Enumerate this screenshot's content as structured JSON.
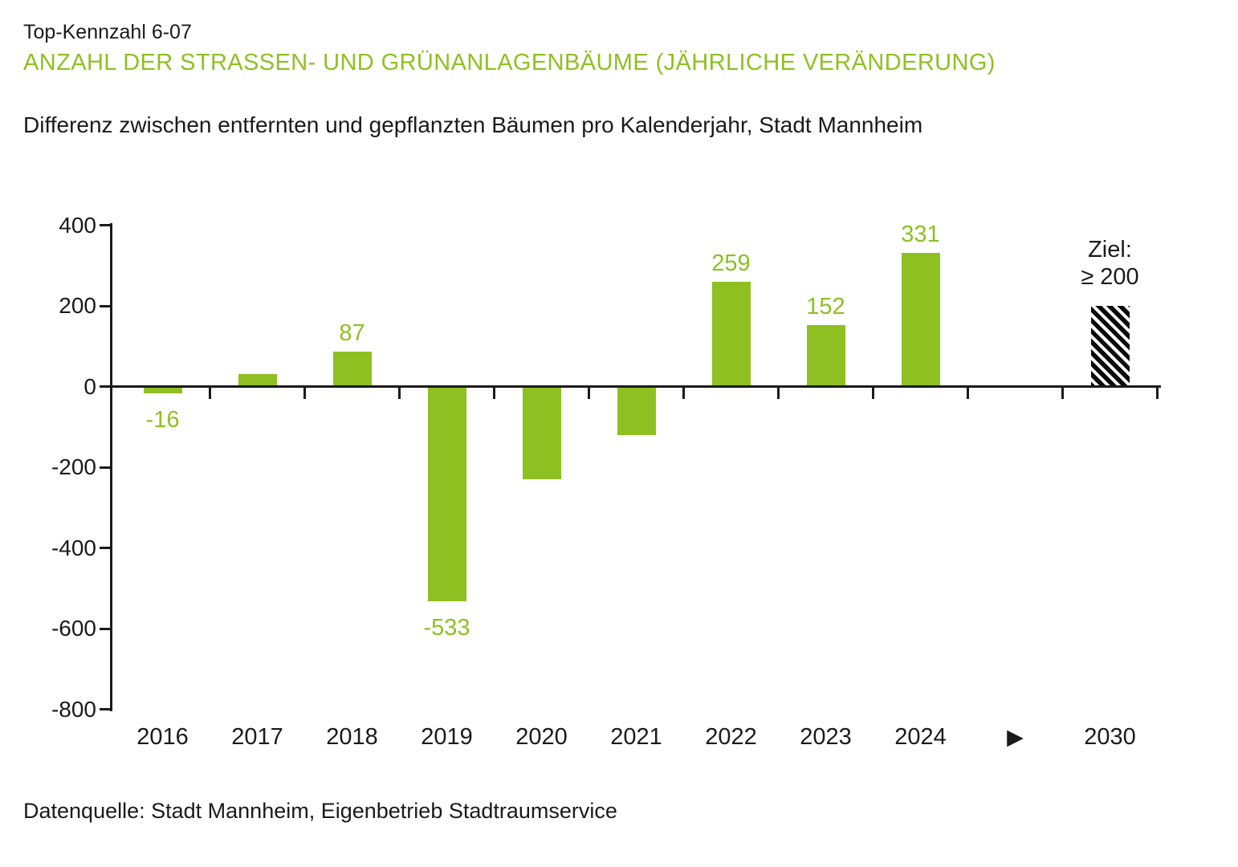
{
  "header": {
    "kpi_id": "Top-Kennzahl 6-07",
    "title": "ANZAHL DER STRASSEN- UND GRÜNANLAGENBÄUME (JÄHRLICHE VERÄNDERUNG)",
    "subtitle": "Differenz zwischen entfernten und gepflanzten Bäumen pro Kalenderjahr, Stadt Mannheim"
  },
  "footer": {
    "source": "Datenquelle: Stadt Mannheim, Eigenbetrieb Stadtraumservice"
  },
  "colors": {
    "bar_green": "#8ec021",
    "title_green": "#8ec021",
    "text_dark": "#1a1a1a",
    "goal_hatch": "#0a0a0a",
    "background": "#ffffff"
  },
  "chart_data": {
    "type": "bar",
    "title": "ANZAHL DER STRASSEN- UND GRÜNANLAGENBÄUME (JÄHRLICHE VERÄNDERUNG)",
    "subtitle": "Differenz zwischen entfernten und gepflanzten Bäumen pro Kalenderjahr, Stadt Mannheim",
    "xlabel": "",
    "ylabel": "",
    "ylim": [
      -800,
      400
    ],
    "yticks": [
      400,
      200,
      0,
      -200,
      -400,
      -600,
      -800
    ],
    "grid": false,
    "legend": false,
    "categories": [
      "2016",
      "2017",
      "2018",
      "2019",
      "2020",
      "2021",
      "2022",
      "2023",
      "2024",
      "▶",
      "2030"
    ],
    "series": [
      {
        "name": "Differenz entfernte/gepflanzte Bäume",
        "values": [
          -16,
          30,
          87,
          -533,
          -230,
          -120,
          259,
          152,
          331,
          null,
          200
        ]
      }
    ],
    "data_labels": [
      "-16",
      null,
      "87",
      "-533",
      null,
      null,
      "259",
      "152",
      "331",
      null,
      null
    ],
    "arrow_index": 9,
    "goal_index": 10,
    "goal": {
      "category": "2030",
      "value": 200,
      "label_line1": "Ziel:",
      "label_line2": "≥ 200",
      "style": "hatched"
    }
  }
}
